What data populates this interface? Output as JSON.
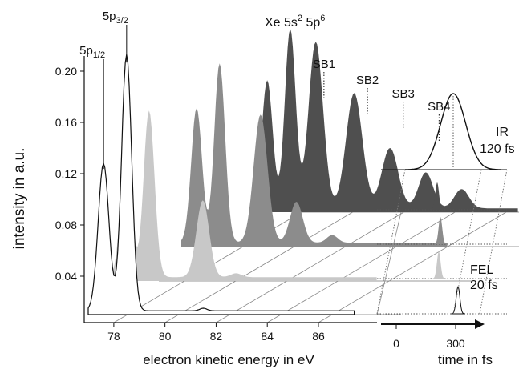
{
  "title": "Xe 5s",
  "title_sup": "2",
  "title_rest": " 5p",
  "title_sup2": "6",
  "chart_data": {
    "type": "area",
    "xlabel": "electron kinetic energy in eV",
    "ylabel": "intensity in a.u.",
    "xlim": [
      77.0,
      87.6
    ],
    "ylim": [
      0.01,
      0.21
    ],
    "x_ticks": [
      "78",
      "80",
      "82",
      "84",
      "86"
    ],
    "y_ticks": [
      "0.04",
      "0.08",
      "0.12",
      "0.16",
      "0.20"
    ],
    "main_peaks": [
      {
        "label": "5p",
        "sub": "1/2",
        "energy": 77.6,
        "intensity": 0.12
      },
      {
        "label": "5p",
        "sub": "3/2",
        "energy": 78.5,
        "intensity": 0.203
      }
    ],
    "sidebands": [
      {
        "label": "SB1",
        "energy": 81.7
      },
      {
        "label": "SB2",
        "energy": 83.4
      },
      {
        "label": "SB3",
        "energy": 84.8
      },
      {
        "label": "SB4",
        "energy": 86.2
      }
    ],
    "series": [
      {
        "color": "#ffffff",
        "baseline": 0.0,
        "delay_shift": 0.0,
        "peaks": [
          [
            77.6,
            0.115,
            0.3
          ],
          [
            78.5,
            0.2,
            0.28
          ],
          [
            81.5,
            0.002,
            0.2
          ]
        ]
      },
      {
        "color": "#c8c8c8",
        "baseline": 0.0,
        "delay_shift": 2.15,
        "peaks": [
          [
            77.6,
            0.096,
            0.3
          ],
          [
            78.5,
            0.13,
            0.3
          ],
          [
            80.6,
            0.06,
            0.35
          ],
          [
            81.9,
            0.003,
            0.3
          ]
        ]
      },
      {
        "color": "#8c8c8c",
        "baseline": 0.0,
        "delay_shift": 4.3,
        "peaks": [
          [
            77.6,
            0.105,
            0.3
          ],
          [
            78.5,
            0.14,
            0.3
          ],
          [
            80.1,
            0.1,
            0.38
          ],
          [
            81.5,
            0.032,
            0.35
          ],
          [
            82.9,
            0.006,
            0.3
          ]
        ]
      },
      {
        "color": "#4f4f4f",
        "baseline": 0.0,
        "delay_shift": 6.45,
        "peaks": [
          [
            77.6,
            0.1,
            0.3
          ],
          [
            78.5,
            0.14,
            0.3
          ],
          [
            79.5,
            0.13,
            0.4
          ],
          [
            81.0,
            0.09,
            0.45
          ],
          [
            82.4,
            0.047,
            0.45
          ],
          [
            83.8,
            0.028,
            0.4
          ],
          [
            85.2,
            0.015,
            0.4
          ]
        ]
      }
    ],
    "ir_pulse": {
      "label": "IR",
      "duration": "120 fs"
    },
    "fel_pulse": {
      "label": "FEL",
      "duration": "20 fs"
    },
    "time_axis": {
      "label": "time in fs",
      "ticks": [
        "0",
        "300"
      ]
    }
  }
}
